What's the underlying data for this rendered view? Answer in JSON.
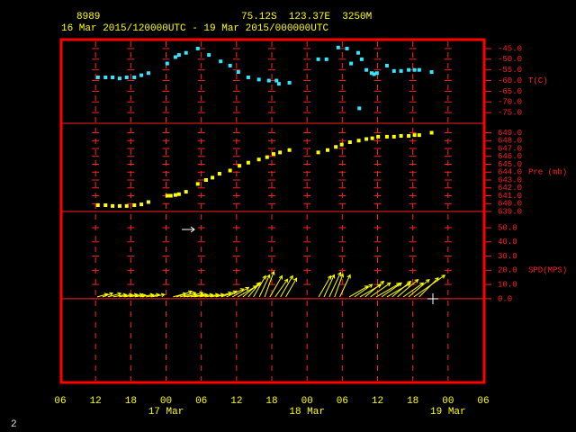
{
  "header": {
    "station": "8989",
    "location": "75.12S  123.37E  3250M",
    "period": "16 Mar 2015/120000UTC - 19 Mar 2015/000000UTC"
  },
  "footer": {
    "page": "2"
  },
  "chart_data": [
    {
      "type": "scatter",
      "y_label": "T(C)",
      "color": "#33e5ff",
      "xlim": [
        6,
        78
      ],
      "ylim": [
        -80,
        -40.8
      ],
      "yticks": [
        {
          "value": -45,
          "label": "-45.0"
        },
        {
          "value": -50,
          "label": "-50.0"
        },
        {
          "value": -55,
          "label": "-55.0"
        },
        {
          "value": -60,
          "label": "-60.0"
        },
        {
          "value": -65,
          "label": "-65.0"
        },
        {
          "value": -70,
          "label": "-70.0"
        },
        {
          "value": -75,
          "label": "-75.0"
        }
      ],
      "x": [
        12.4,
        13.7,
        14.9,
        16.1,
        17.3,
        18.6,
        19.8,
        21.0,
        24.2,
        25.6,
        26.2,
        27.4,
        29.4,
        31.3,
        33.3,
        34.9,
        36.3,
        38.0,
        39.8,
        41.5,
        42.8,
        43.2,
        45.0,
        49.9,
        51.3,
        53.3,
        54.8,
        55.5,
        56.7,
        56.9,
        57.3,
        58.1,
        59.0,
        59.4,
        59.9,
        61.6,
        62.8,
        64.0,
        65.3,
        66.3,
        67.1,
        69.2
      ],
      "values": [
        -58.5,
        -58.5,
        -58.5,
        -59,
        -58.5,
        -58.5,
        -57.5,
        -56.5,
        -52,
        -49,
        -48,
        -47,
        -45,
        -48,
        -51,
        -53,
        -56,
        -58.5,
        -59.5,
        -60,
        -60,
        -61.5,
        -61,
        -50,
        -50,
        -44.5,
        -45,
        -52,
        -47,
        -73,
        -50,
        -55,
        -56.5,
        -57,
        -56.5,
        -53,
        -55.5,
        -55.5,
        -55,
        -55,
        -55,
        -56
      ]
    },
    {
      "type": "scatter",
      "y_label": "Pre (mb)",
      "color": "#ffff00",
      "xlim": [
        6,
        78
      ],
      "ylim": [
        639,
        650.2
      ],
      "yticks": [
        {
          "value": 649,
          "label": "649.0"
        },
        {
          "value": 648,
          "label": "648.0"
        },
        {
          "value": 647,
          "label": "647.0"
        },
        {
          "value": 646,
          "label": "646.0"
        },
        {
          "value": 645,
          "label": "645.0"
        },
        {
          "value": 644,
          "label": "644.0"
        },
        {
          "value": 643,
          "label": "643.0"
        },
        {
          "value": 642,
          "label": "642.0"
        },
        {
          "value": 641,
          "label": "641.0"
        },
        {
          "value": 640,
          "label": "640.0"
        },
        {
          "value": 639,
          "label": "639.0"
        }
      ],
      "x": [
        12.4,
        13.7,
        14.9,
        16.1,
        17.3,
        18.6,
        19.8,
        21.0,
        24.2,
        24.8,
        25.6,
        26.2,
        27.4,
        29.4,
        30.8,
        31.9,
        33.1,
        34.9,
        36.5,
        38.0,
        39.8,
        41.2,
        42.3,
        43.4,
        45.0,
        49.9,
        51.5,
        52.9,
        53.9,
        55.3,
        56.8,
        58.1,
        59.1,
        60.1,
        61.6,
        62.8,
        64.0,
        65.3,
        66.3,
        67.1,
        69.2
      ],
      "values": [
        639.8,
        639.8,
        639.7,
        639.7,
        639.7,
        639.8,
        639.9,
        640.2,
        641.0,
        641.0,
        641.1,
        641.2,
        641.5,
        642.5,
        643.0,
        643.3,
        643.8,
        644.2,
        644.8,
        645.2,
        645.6,
        645.9,
        646.3,
        646.5,
        646.8,
        646.5,
        646.8,
        647.2,
        647.5,
        647.8,
        648.0,
        648.2,
        648.3,
        648.5,
        648.5,
        648.5,
        648.6,
        648.6,
        648.7,
        648.7,
        649.0
      ]
    },
    {
      "type": "wind",
      "y_label": "SPD(MPS)",
      "color": "#ffff00",
      "xlim": [
        6,
        78
      ],
      "ylim": [
        -59,
        61.4
      ],
      "yticks": [
        {
          "value": 50,
          "label": "50.0"
        },
        {
          "value": 40,
          "label": "40.0"
        },
        {
          "value": 30,
          "label": "30.0"
        },
        {
          "value": 20,
          "label": "20.0"
        },
        {
          "value": 10,
          "label": "10.0"
        },
        {
          "value": 0,
          "label": "0.0"
        }
      ],
      "xticks": [
        {
          "value": 6,
          "label": "06"
        },
        {
          "value": 12,
          "label": "12"
        },
        {
          "value": 18,
          "label": "18"
        },
        {
          "value": 24,
          "label": "00"
        },
        {
          "value": 30,
          "label": "06"
        },
        {
          "value": 36,
          "label": "12"
        },
        {
          "value": 42,
          "label": "18"
        },
        {
          "value": 48,
          "label": "00"
        },
        {
          "value": 54,
          "label": "06"
        },
        {
          "value": 60,
          "label": "12"
        },
        {
          "value": 66,
          "label": "18"
        },
        {
          "value": 72,
          "label": "00"
        },
        {
          "value": 78,
          "label": "06"
        }
      ],
      "date_labels": [
        {
          "value": 24,
          "label": "17 Mar"
        },
        {
          "value": 48,
          "label": "18 Mar"
        },
        {
          "value": 72,
          "label": "19 Mar"
        }
      ],
      "x": [
        12.9,
        13.8,
        14.7,
        15.6,
        16.6,
        17.5,
        18.4,
        19.3,
        20.2,
        21.2,
        22.1,
        25.8,
        26.4,
        27.0,
        27.6,
        28.2,
        28.8,
        29.4,
        30.3,
        31.3,
        32.2,
        33.1,
        34.0,
        34.9,
        35.9,
        36.8,
        37.7,
        38.6,
        39.5,
        40.5,
        41.4,
        42.3,
        43.2,
        44.1,
        45.0,
        50.6,
        51.5,
        52.4,
        53.3,
        54.2,
        55.8,
        56.7,
        57.6,
        58.5,
        59.4,
        60.4,
        61.3,
        62.2,
        63.1,
        64.0,
        65.0,
        65.9,
        66.8,
        67.7
      ],
      "values": [
        4,
        4,
        5,
        5,
        5,
        5,
        5,
        4,
        5,
        5,
        5,
        5,
        6,
        6,
        5,
        6,
        5,
        5,
        5,
        5,
        5,
        6,
        6,
        7,
        7,
        8,
        8,
        7,
        9,
        9,
        10,
        9,
        8,
        9,
        8,
        9,
        9,
        10,
        9,
        9,
        8,
        8,
        9,
        9,
        9,
        10,
        9,
        10,
        9,
        10,
        9,
        10,
        14,
        10
      ],
      "direction": [
        15,
        20,
        15,
        10,
        10,
        10,
        10,
        10,
        10,
        10,
        10,
        15,
        20,
        15,
        10,
        15,
        10,
        10,
        10,
        10,
        10,
        15,
        20,
        25,
        30,
        30,
        40,
        50,
        60,
        65,
        70,
        60,
        55,
        60,
        60,
        60,
        65,
        65,
        70,
        65,
        30,
        35,
        30,
        40,
        35,
        30,
        35,
        30,
        40,
        40,
        35,
        40,
        35,
        45
      ]
    }
  ]
}
